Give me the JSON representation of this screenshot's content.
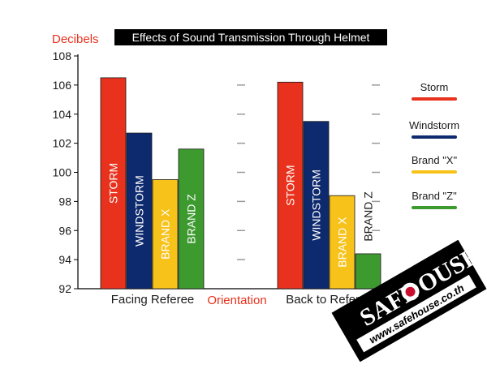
{
  "chart_data": {
    "type": "bar",
    "title": "Effects of Sound Transmission Through Helmet",
    "ylabel": "Decibels",
    "xlabel": "Orientation",
    "ylim": [
      92,
      108
    ],
    "yticks": [
      92,
      94,
      96,
      98,
      100,
      102,
      104,
      106,
      108
    ],
    "grid": false,
    "legend_position": "right",
    "categories": [
      "Facing Referee",
      "Back to Referee"
    ],
    "series": [
      {
        "name": "Storm",
        "bar_label": "STORM",
        "color": "#e8321e",
        "values": [
          106.5,
          106.2
        ]
      },
      {
        "name": "Windstorm",
        "bar_label": "WINDSTORM",
        "color": "#0e2a6e",
        "values": [
          102.7,
          103.5
        ]
      },
      {
        "name": "Brand \"X\"",
        "bar_label": "BRAND X",
        "color": "#f7c21a",
        "values": [
          99.5,
          98.4
        ]
      },
      {
        "name": "Brand \"Z\"",
        "bar_label": "BRAND Z",
        "color": "#3d9a2f",
        "values": [
          101.6,
          94.4
        ]
      }
    ]
  },
  "watermark": {
    "brand_left": "SAFE",
    "brand_right": "OUSE",
    "url": "www.safehouse.co.th"
  }
}
